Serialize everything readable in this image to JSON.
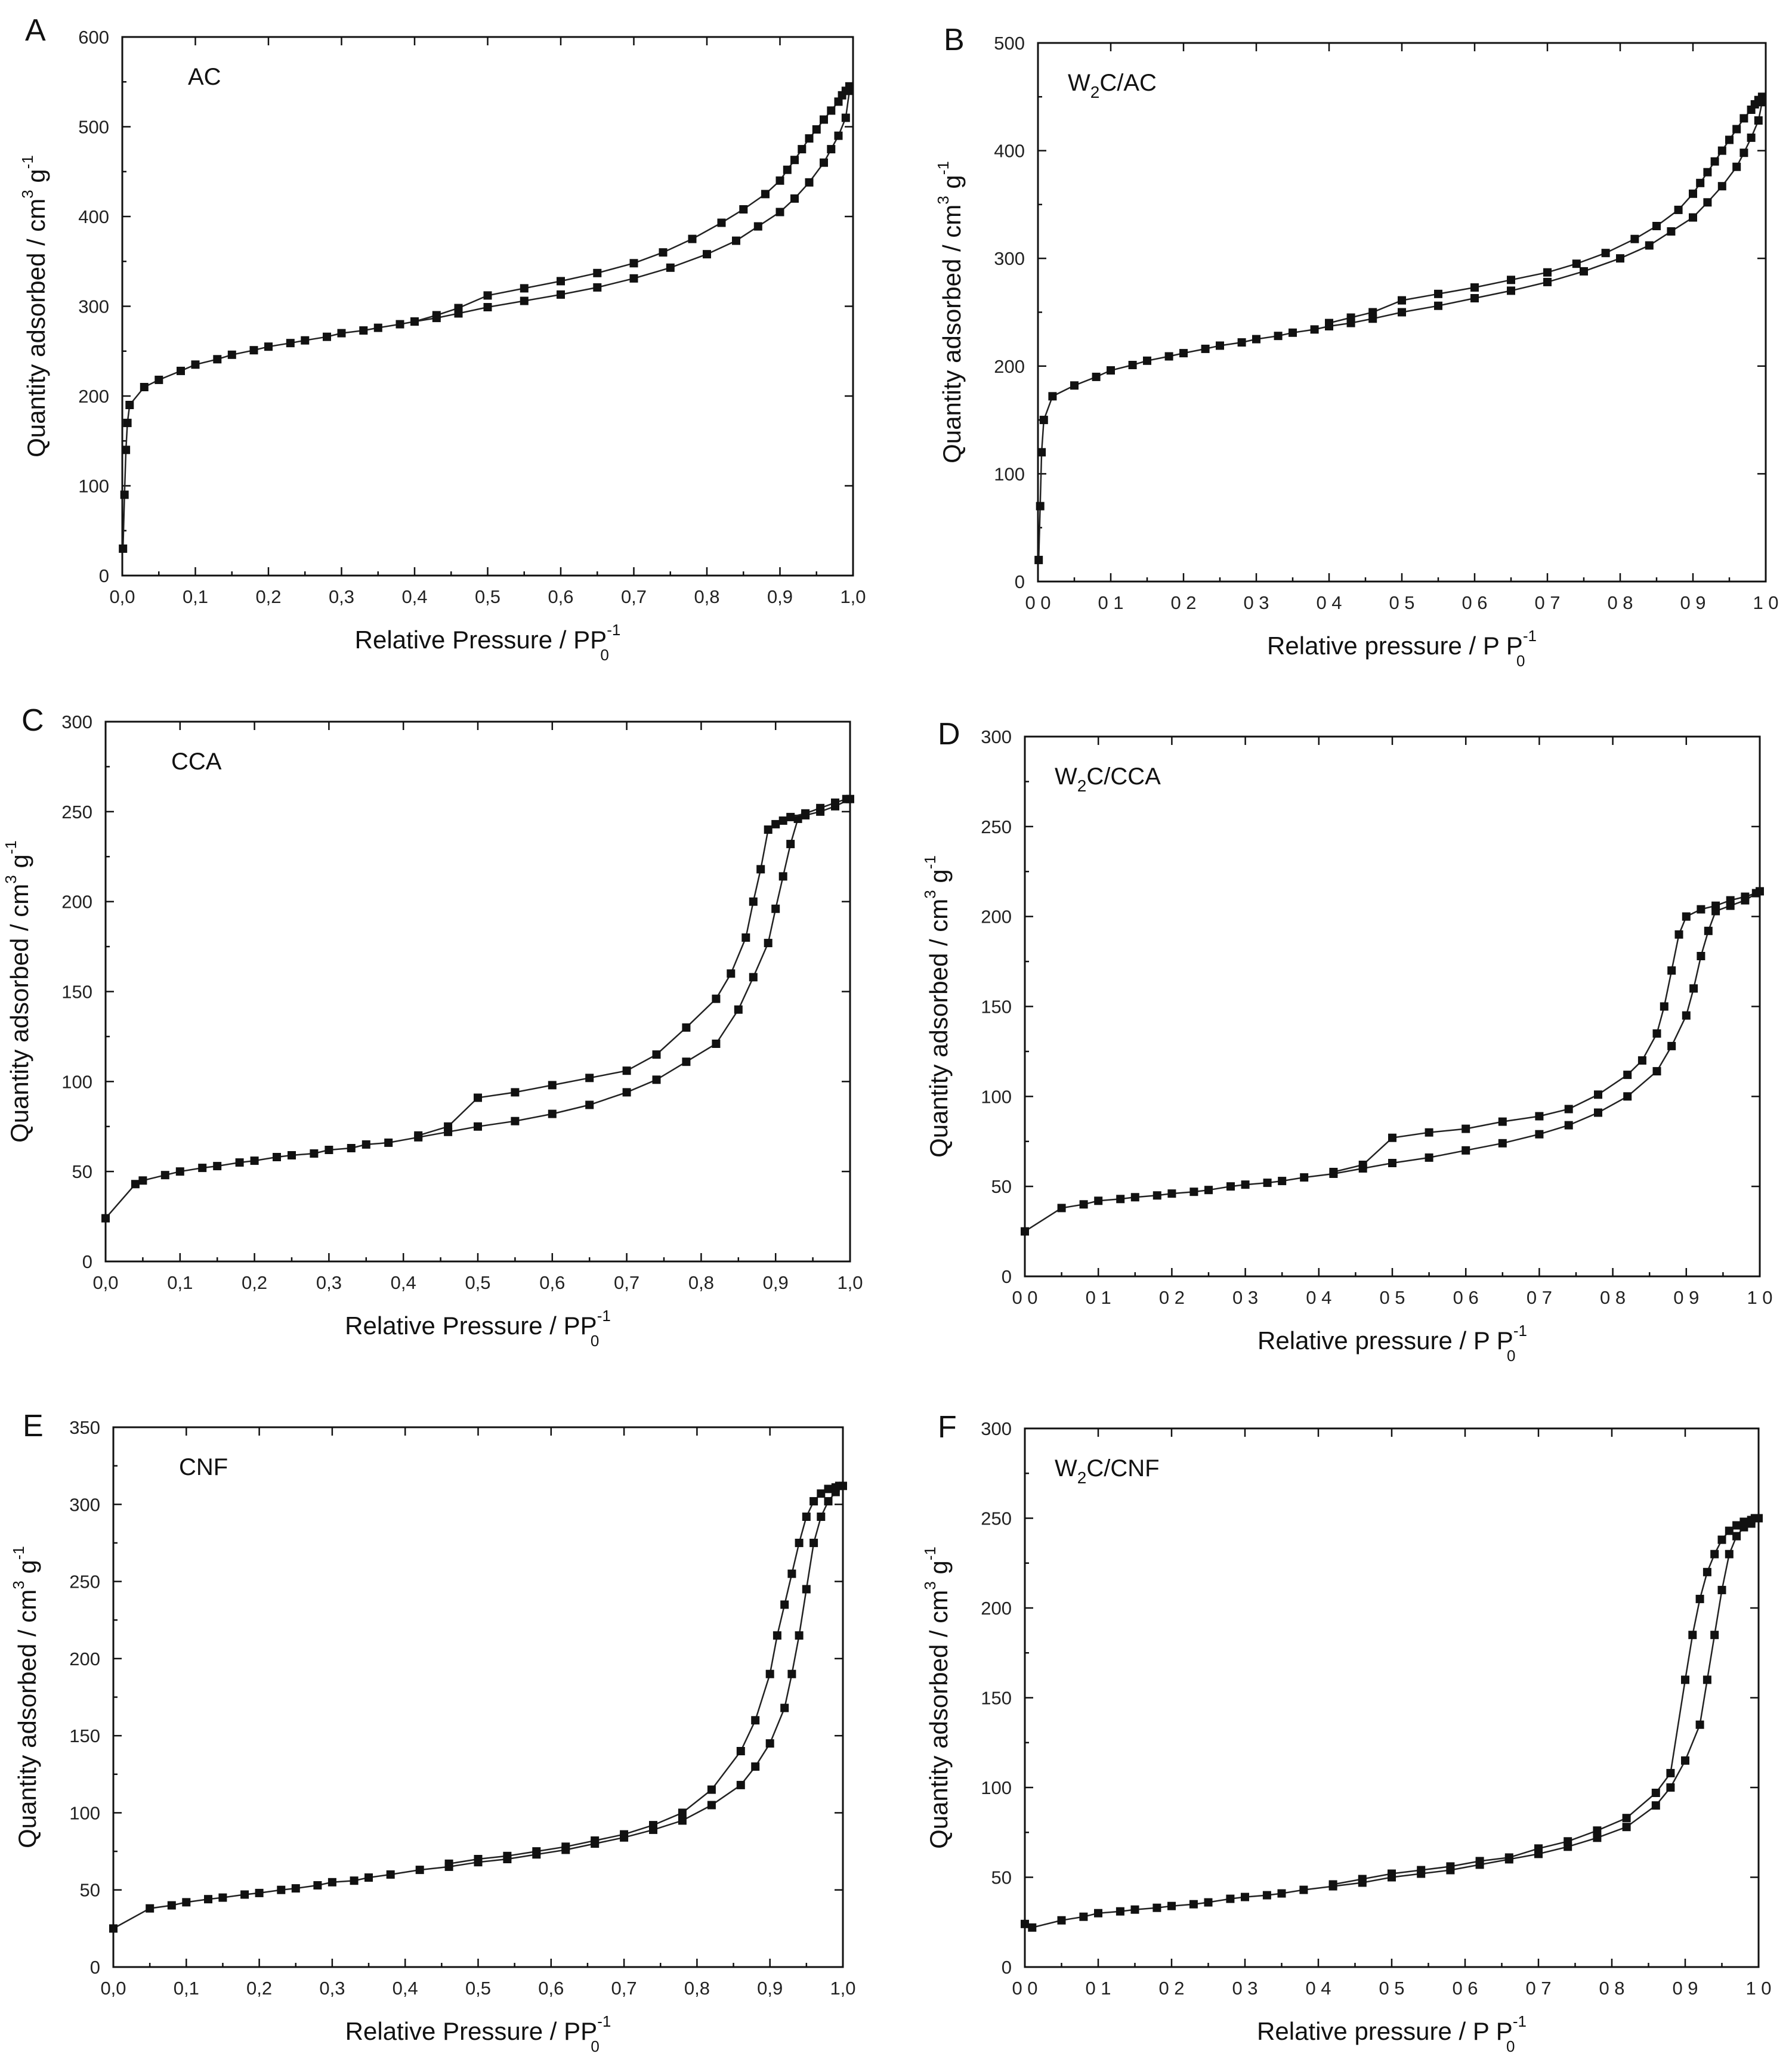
{
  "chart_data": [
    {
      "panel": "A",
      "type": "line",
      "title": "AC",
      "xlabel": "Relative Pressure / PP",
      "xlabel_sup": "-1",
      "xlabel_sub": "0",
      "ylabel": "Quantity adsorbed / cm",
      "ylabel_sup": "3",
      "ylabel_mid": " g",
      "ylabel_sup2": "-1",
      "xlim": [
        0,
        1
      ],
      "ylim": [
        0,
        600
      ],
      "xticks": [
        "0,0",
        "0,1",
        "0,2",
        "0,3",
        "0,4",
        "0,5",
        "0,6",
        "0,7",
        "0,8",
        "0,9",
        "1,0"
      ],
      "yticks": [
        "0",
        "100",
        "200",
        "300",
        "400",
        "500",
        "600"
      ],
      "series": [
        {
          "name": "adsorption",
          "x": [
            0.001,
            0.003,
            0.005,
            0.007,
            0.01,
            0.03,
            0.05,
            0.08,
            0.1,
            0.13,
            0.15,
            0.18,
            0.2,
            0.23,
            0.25,
            0.28,
            0.3,
            0.33,
            0.35,
            0.38,
            0.4,
            0.43,
            0.46,
            0.5,
            0.55,
            0.6,
            0.65,
            0.7,
            0.75,
            0.8,
            0.84,
            0.87,
            0.9,
            0.92,
            0.94,
            0.96,
            0.97,
            0.98,
            0.99,
            0.995
          ],
          "y": [
            30,
            90,
            140,
            170,
            190,
            210,
            218,
            228,
            235,
            241,
            246,
            251,
            255,
            259,
            262,
            266,
            270,
            273,
            276,
            280,
            283,
            287,
            292,
            299,
            306,
            313,
            321,
            331,
            343,
            358,
            373,
            389,
            405,
            420,
            438,
            460,
            475,
            490,
            510,
            540
          ]
        },
        {
          "name": "desorption",
          "x": [
            0.995,
            0.99,
            0.985,
            0.98,
            0.97,
            0.96,
            0.95,
            0.94,
            0.93,
            0.92,
            0.91,
            0.9,
            0.88,
            0.85,
            0.82,
            0.78,
            0.74,
            0.7,
            0.65,
            0.6,
            0.55,
            0.5,
            0.46,
            0.43,
            0.4
          ],
          "y": [
            545,
            540,
            535,
            528,
            518,
            508,
            497,
            487,
            475,
            463,
            452,
            440,
            425,
            408,
            393,
            375,
            360,
            348,
            337,
            328,
            320,
            312,
            298,
            290,
            283
          ]
        }
      ]
    },
    {
      "panel": "B",
      "type": "line",
      "title": "W2C/AC",
      "title_base": "W",
      "title_sub": "2",
      "title_rest": "C/AC",
      "xlabel": "Relative pressure / P P",
      "xlabel_sup": "-1",
      "xlabel_sub": "0",
      "ylabel": "Quantity adsorbed / cm",
      "ylabel_sup": "3",
      "ylabel_mid": " g",
      "ylabel_sup2": "-1",
      "xlim": [
        0,
        1
      ],
      "ylim": [
        0,
        500
      ],
      "xticks": [
        "0 0",
        "0 1",
        "0 2",
        "0 3",
        "0 4",
        "0 5",
        "0 6",
        "0 7",
        "0 8",
        "0 9",
        "1 0"
      ],
      "yticks": [
        "0",
        "100",
        "200",
        "300",
        "400",
        "500"
      ],
      "series": [
        {
          "name": "adsorption",
          "x": [
            0.001,
            0.003,
            0.005,
            0.008,
            0.02,
            0.05,
            0.08,
            0.1,
            0.13,
            0.15,
            0.18,
            0.2,
            0.23,
            0.25,
            0.28,
            0.3,
            0.33,
            0.35,
            0.38,
            0.4,
            0.43,
            0.46,
            0.5,
            0.55,
            0.6,
            0.65,
            0.7,
            0.75,
            0.8,
            0.84,
            0.87,
            0.9,
            0.92,
            0.94,
            0.96,
            0.97,
            0.98,
            0.99,
            0.995
          ],
          "y": [
            20,
            70,
            120,
            150,
            172,
            182,
            190,
            196,
            201,
            205,
            209,
            212,
            216,
            219,
            222,
            225,
            228,
            231,
            234,
            237,
            240,
            244,
            250,
            256,
            263,
            270,
            278,
            288,
            300,
            312,
            325,
            338,
            352,
            367,
            385,
            398,
            412,
            428,
            445
          ]
        },
        {
          "name": "desorption",
          "x": [
            0.995,
            0.99,
            0.985,
            0.98,
            0.97,
            0.96,
            0.95,
            0.94,
            0.93,
            0.92,
            0.91,
            0.9,
            0.88,
            0.85,
            0.82,
            0.78,
            0.74,
            0.7,
            0.65,
            0.6,
            0.55,
            0.5,
            0.46,
            0.43,
            0.4
          ],
          "y": [
            450,
            447,
            443,
            438,
            430,
            420,
            410,
            400,
            390,
            380,
            370,
            360,
            345,
            330,
            318,
            305,
            295,
            287,
            280,
            273,
            267,
            261,
            250,
            245,
            240
          ]
        }
      ]
    },
    {
      "panel": "C",
      "type": "line",
      "title": "CCA",
      "xlabel": "Relative Pressure / PP",
      "xlabel_sup": "-1",
      "xlabel_sub": "0",
      "ylabel": "Quantity adsorbed / cm",
      "ylabel_sup": "3",
      "ylabel_mid": " g",
      "ylabel_sup2": "-1",
      "xlim": [
        0,
        1
      ],
      "ylim": [
        0,
        300
      ],
      "xticks": [
        "0,0",
        "0,1",
        "0,2",
        "0,3",
        "0,4",
        "0,5",
        "0,6",
        "0,7",
        "0,8",
        "0,9",
        "1,0"
      ],
      "yticks": [
        "0",
        "50",
        "100",
        "150",
        "200",
        "250",
        "300"
      ],
      "series": [
        {
          "name": "adsorption",
          "x": [
            0.0,
            0.04,
            0.05,
            0.08,
            0.1,
            0.13,
            0.15,
            0.18,
            0.2,
            0.23,
            0.25,
            0.28,
            0.3,
            0.33,
            0.35,
            0.38,
            0.42,
            0.46,
            0.5,
            0.55,
            0.6,
            0.65,
            0.7,
            0.74,
            0.78,
            0.82,
            0.85,
            0.87,
            0.89,
            0.9,
            0.91,
            0.92,
            0.93,
            0.94,
            0.96,
            0.98,
            1.0
          ],
          "y": [
            24,
            43,
            45,
            48,
            50,
            52,
            53,
            55,
            56,
            58,
            59,
            60,
            62,
            63,
            65,
            66,
            69,
            72,
            75,
            78,
            82,
            87,
            94,
            101,
            111,
            121,
            140,
            158,
            177,
            196,
            214,
            232,
            246,
            248,
            250,
            253,
            257
          ]
        },
        {
          "name": "desorption",
          "x": [
            0.995,
            0.98,
            0.96,
            0.94,
            0.92,
            0.91,
            0.9,
            0.89,
            0.88,
            0.87,
            0.86,
            0.84,
            0.82,
            0.78,
            0.74,
            0.7,
            0.65,
            0.6,
            0.55,
            0.5,
            0.46,
            0.42
          ],
          "y": [
            257,
            255,
            252,
            249,
            247,
            245,
            243,
            240,
            218,
            200,
            180,
            160,
            146,
            130,
            115,
            106,
            102,
            98,
            94,
            91,
            75,
            70
          ]
        }
      ]
    },
    {
      "panel": "D",
      "type": "line",
      "title": "W2C/CCA",
      "title_base": "W",
      "title_sub": "2",
      "title_rest": "C/CCA",
      "xlabel": "Relative pressure / P P",
      "xlabel_sup": "-1",
      "xlabel_sub": "0",
      "ylabel": "Quantity adsorbed / cm",
      "ylabel_sup": "3",
      "ylabel_mid": " g",
      "ylabel_sup2": "-1",
      "xlim": [
        0,
        1
      ],
      "ylim": [
        0,
        300
      ],
      "xticks": [
        "0 0",
        "0 1",
        "0 2",
        "0 3",
        "0 4",
        "0 5",
        "0 6",
        "0 7",
        "0 8",
        "0 9",
        "1 0"
      ],
      "yticks": [
        "0",
        "50",
        "100",
        "150",
        "200",
        "250",
        "300"
      ],
      "series": [
        {
          "name": "adsorption",
          "x": [
            0.0,
            0.05,
            0.08,
            0.1,
            0.13,
            0.15,
            0.18,
            0.2,
            0.23,
            0.25,
            0.28,
            0.3,
            0.33,
            0.35,
            0.38,
            0.42,
            0.46,
            0.5,
            0.55,
            0.6,
            0.65,
            0.7,
            0.74,
            0.78,
            0.82,
            0.86,
            0.88,
            0.9,
            0.91,
            0.92,
            0.93,
            0.94,
            0.96,
            0.98,
            1.0
          ],
          "y": [
            25,
            38,
            40,
            42,
            43,
            44,
            45,
            46,
            47,
            48,
            50,
            51,
            52,
            53,
            55,
            57,
            60,
            63,
            66,
            70,
            74,
            79,
            84,
            91,
            100,
            114,
            128,
            145,
            160,
            178,
            192,
            203,
            206,
            209,
            214
          ]
        },
        {
          "name": "desorption",
          "x": [
            0.995,
            0.98,
            0.96,
            0.94,
            0.92,
            0.9,
            0.89,
            0.88,
            0.87,
            0.86,
            0.84,
            0.82,
            0.78,
            0.74,
            0.7,
            0.65,
            0.6,
            0.55,
            0.5,
            0.46,
            0.42
          ],
          "y": [
            213,
            211,
            209,
            206,
            204,
            200,
            190,
            170,
            150,
            135,
            120,
            112,
            101,
            93,
            89,
            86,
            82,
            80,
            77,
            62,
            58
          ]
        }
      ]
    },
    {
      "panel": "E",
      "type": "line",
      "title": "CNF",
      "xlabel": "Relative Pressure / PP",
      "xlabel_sup": "-1",
      "xlabel_sub": "0",
      "ylabel": "Quantity adsorbed / cm",
      "ylabel_sup": "3",
      "ylabel_mid": " g",
      "ylabel_sup2": "-1",
      "xlim": [
        0,
        1
      ],
      "ylim": [
        0,
        350
      ],
      "xticks": [
        "0,0",
        "0,1",
        "0,2",
        "0,3",
        "0,4",
        "0,5",
        "0,6",
        "0,7",
        "0,8",
        "0,9",
        "1,0"
      ],
      "yticks": [
        "0",
        "50",
        "100",
        "150",
        "200",
        "250",
        "300",
        "350"
      ],
      "series": [
        {
          "name": "adsorption",
          "x": [
            0.0,
            0.05,
            0.08,
            0.1,
            0.13,
            0.15,
            0.18,
            0.2,
            0.23,
            0.25,
            0.28,
            0.3,
            0.33,
            0.35,
            0.38,
            0.42,
            0.46,
            0.5,
            0.54,
            0.58,
            0.62,
            0.66,
            0.7,
            0.74,
            0.78,
            0.82,
            0.86,
            0.88,
            0.9,
            0.92,
            0.93,
            0.94,
            0.95,
            0.96,
            0.97,
            0.98,
            0.99,
            1.0
          ],
          "y": [
            25,
            38,
            40,
            42,
            44,
            45,
            47,
            48,
            50,
            51,
            53,
            55,
            56,
            58,
            60,
            63,
            65,
            68,
            70,
            73,
            76,
            80,
            84,
            89,
            95,
            105,
            118,
            130,
            145,
            168,
            190,
            215,
            245,
            275,
            292,
            302,
            308,
            312
          ]
        },
        {
          "name": "desorption",
          "x": [
            0.995,
            0.99,
            0.98,
            0.97,
            0.96,
            0.95,
            0.94,
            0.93,
            0.92,
            0.91,
            0.9,
            0.88,
            0.86,
            0.82,
            0.78,
            0.74,
            0.7,
            0.66,
            0.62,
            0.58,
            0.54,
            0.5,
            0.46
          ],
          "y": [
            312,
            311,
            310,
            307,
            302,
            292,
            275,
            255,
            235,
            215,
            190,
            160,
            140,
            115,
            100,
            92,
            86,
            82,
            78,
            75,
            72,
            70,
            67
          ]
        }
      ]
    },
    {
      "panel": "F",
      "type": "line",
      "title": "W2C/CNF",
      "title_base": "W",
      "title_sub": "2",
      "title_rest": "C/CNF",
      "xlabel": "Relative pressure / P P",
      "xlabel_sup": "-1",
      "xlabel_sub": "0",
      "ylabel": "Quantity adsorbed / cm",
      "ylabel_sup": "3",
      "ylabel_mid": " g",
      "ylabel_sup2": "-1",
      "xlim": [
        0,
        1
      ],
      "ylim": [
        0,
        300
      ],
      "xticks": [
        "0 0",
        "0 1",
        "0 2",
        "0 3",
        "0 4",
        "0 5",
        "0 6",
        "0 7",
        "0 8",
        "0 9",
        "1 0"
      ],
      "yticks": [
        "0",
        "50",
        "100",
        "150",
        "200",
        "250",
        "300"
      ],
      "series": [
        {
          "name": "adsorption",
          "x": [
            0.0,
            0.01,
            0.05,
            0.08,
            0.1,
            0.13,
            0.15,
            0.18,
            0.2,
            0.23,
            0.25,
            0.28,
            0.3,
            0.33,
            0.35,
            0.38,
            0.42,
            0.46,
            0.5,
            0.54,
            0.58,
            0.62,
            0.66,
            0.7,
            0.74,
            0.78,
            0.82,
            0.86,
            0.88,
            0.9,
            0.92,
            0.93,
            0.94,
            0.95,
            0.96,
            0.97,
            0.98,
            0.99,
            1.0
          ],
          "y": [
            24,
            22,
            26,
            28,
            30,
            31,
            32,
            33,
            34,
            35,
            36,
            38,
            39,
            40,
            41,
            43,
            45,
            47,
            50,
            52,
            54,
            57,
            60,
            63,
            67,
            72,
            78,
            90,
            100,
            115,
            135,
            160,
            185,
            210,
            230,
            240,
            245,
            247,
            250
          ]
        },
        {
          "name": "desorption",
          "x": [
            0.995,
            0.99,
            0.98,
            0.97,
            0.96,
            0.95,
            0.94,
            0.93,
            0.92,
            0.91,
            0.9,
            0.88,
            0.86,
            0.82,
            0.78,
            0.74,
            0.7,
            0.66,
            0.62,
            0.58,
            0.54,
            0.5,
            0.46,
            0.42
          ],
          "y": [
            250,
            249,
            248,
            246,
            243,
            238,
            230,
            220,
            205,
            185,
            160,
            108,
            97,
            83,
            76,
            70,
            66,
            61,
            59,
            56,
            54,
            52,
            49,
            46
          ]
        }
      ]
    }
  ]
}
